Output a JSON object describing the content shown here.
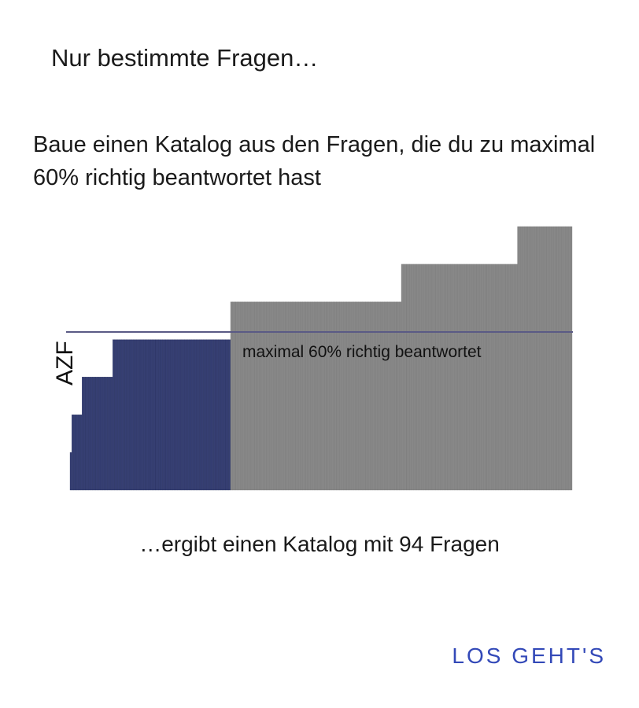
{
  "dialog": {
    "title": "Nur bestimmte Fragen…",
    "description": "Baue einen Katalog aus den Fragen, die du zu maximal 60% richtig beantwortet hast",
    "result": "…ergibt einen Katalog mit 94 Fragen",
    "confirm_label": "LOS GEHT'S"
  },
  "colors": {
    "selected": "#363f73",
    "unselected": "#888888",
    "threshold_line": "#5a5a85",
    "accent": "#3349b8"
  },
  "chart_data": {
    "type": "bar",
    "ylabel": "AZF",
    "ylim": [
      0,
      100
    ],
    "threshold": 60,
    "threshold_label": "maximal 60% richtig beantwortet",
    "grid": false,
    "runs": [
      {
        "value": 14.3,
        "count": 1,
        "selected": true
      },
      {
        "value": 28.6,
        "count": 6,
        "selected": true
      },
      {
        "value": 42.9,
        "count": 18,
        "selected": true
      },
      {
        "value": 57.1,
        "count": 69,
        "selected": true
      },
      {
        "value": 71.4,
        "count": 100,
        "selected": false
      },
      {
        "value": 85.7,
        "count": 68,
        "selected": false
      },
      {
        "value": 100,
        "count": 32,
        "selected": false
      }
    ]
  }
}
